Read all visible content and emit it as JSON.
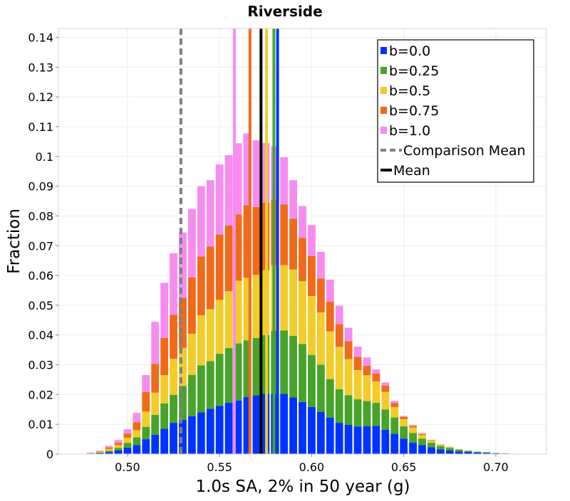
{
  "chart_data": {
    "type": "bar",
    "stacked": true,
    "title": "Riverside",
    "xlabel": "1.0s SA, 2% in 50 year (g)",
    "ylabel": "Fraction",
    "xlim": [
      0.4625,
      0.7275
    ],
    "ylim": [
      0,
      0.143
    ],
    "x_ticks": [
      0.5,
      0.55,
      0.6,
      0.65,
      0.7
    ],
    "x_tick_labels": [
      "0.50",
      "0.55",
      "0.60",
      "0.65",
      "0.70"
    ],
    "y_ticks": [
      0,
      0.01,
      0.02,
      0.03,
      0.04,
      0.05,
      0.06,
      0.07,
      0.08,
      0.09,
      0.1,
      0.11,
      0.12,
      0.13,
      0.14
    ],
    "y_tick_labels": [
      "0",
      "0.01",
      "0.02",
      "0.03",
      "0.04",
      "0.05",
      "0.06",
      "0.07",
      "0.08",
      "0.09",
      "0.1",
      "0.11",
      "0.12",
      "0.13",
      "0.14"
    ],
    "grid": true,
    "bin_width": 0.005,
    "bin_centers": [
      0.475,
      0.48,
      0.485,
      0.49,
      0.495,
      0.5,
      0.505,
      0.51,
      0.515,
      0.52,
      0.525,
      0.53,
      0.535,
      0.54,
      0.545,
      0.55,
      0.555,
      0.56,
      0.565,
      0.57,
      0.575,
      0.58,
      0.585,
      0.59,
      0.595,
      0.6,
      0.605,
      0.61,
      0.615,
      0.62,
      0.625,
      0.63,
      0.635,
      0.64,
      0.645,
      0.65,
      0.655,
      0.66,
      0.665,
      0.67,
      0.675,
      0.68,
      0.685,
      0.69,
      0.695,
      0.7,
      0.705,
      0.71,
      0.715
    ],
    "series": [
      {
        "name": "b=0.0",
        "color": "#0033ff",
        "values": [
          0,
          0.0001,
          0.0003,
          0.0006,
          0.0012,
          0.0022,
          0.003,
          0.005,
          0.0065,
          0.0085,
          0.0105,
          0.0115,
          0.0127,
          0.014,
          0.0152,
          0.0162,
          0.0172,
          0.018,
          0.0192,
          0.0197,
          0.0203,
          0.0202,
          0.0202,
          0.019,
          0.0175,
          0.0158,
          0.0142,
          0.0122,
          0.0105,
          0.0098,
          0.0092,
          0.0094,
          0.0095,
          0.0082,
          0.0068,
          0.0052,
          0.0038,
          0.003,
          0.0023,
          0.0016,
          0.0012,
          0.0009,
          0.0007,
          0.0005,
          0.0004,
          0.0003,
          0.0002,
          0.0001,
          0.0001
        ]
      },
      {
        "name": "b=0.25",
        "color": "#47a32a",
        "values": [
          0,
          0.0001,
          0.0002,
          0.0005,
          0.0009,
          0.0015,
          0.0026,
          0.0041,
          0.0067,
          0.0085,
          0.0094,
          0.0114,
          0.0139,
          0.0158,
          0.016,
          0.0175,
          0.0184,
          0.0192,
          0.019,
          0.0193,
          0.0197,
          0.0212,
          0.0213,
          0.0207,
          0.0195,
          0.0175,
          0.0158,
          0.013,
          0.0113,
          0.01,
          0.0092,
          0.0084,
          0.0077,
          0.0068,
          0.0055,
          0.0041,
          0.0033,
          0.0022,
          0.0015,
          0.0011,
          0.0009,
          0.0006,
          0.0004,
          0.0003,
          0.0002,
          0.0001,
          0.0001,
          0.0001,
          0
        ]
      },
      {
        "name": "b=0.5",
        "color": "#f2cc2a",
        "values": [
          0,
          0.0001,
          0.0002,
          0.0006,
          0.0009,
          0.0018,
          0.0024,
          0.0052,
          0.0074,
          0.0095,
          0.0121,
          0.0128,
          0.0138,
          0.0168,
          0.0175,
          0.0181,
          0.0191,
          0.021,
          0.021,
          0.0212,
          0.0218,
          0.022,
          0.022,
          0.0223,
          0.0211,
          0.0198,
          0.0176,
          0.016,
          0.0142,
          0.0121,
          0.0098,
          0.0087,
          0.0072,
          0.0059,
          0.0035,
          0.0024,
          0.0018,
          0.0012,
          0.0007,
          0.0005,
          0.0003,
          0.0002,
          0.0001,
          0.0001,
          0.0001,
          0,
          0,
          0,
          0
        ]
      },
      {
        "name": "b=0.75",
        "color": "#f06a1a",
        "values": [
          0,
          0.0001,
          0.0002,
          0.0005,
          0.0008,
          0.0014,
          0.0027,
          0.0065,
          0.0097,
          0.0125,
          0.0148,
          0.0168,
          0.0189,
          0.0198,
          0.021,
          0.022,
          0.0221,
          0.0223,
          0.0244,
          0.0228,
          0.0226,
          0.0221,
          0.0204,
          0.0171,
          0.0145,
          0.0134,
          0.0114,
          0.01,
          0.0077,
          0.006,
          0.0045,
          0.0032,
          0.0027,
          0.0021,
          0.0013,
          0.0008,
          0.0006,
          0.0004,
          0.0002,
          0.0001,
          0.0001,
          0,
          0,
          0,
          0,
          0,
          0,
          0,
          0
        ]
      },
      {
        "name": "b=1.0",
        "color": "#f78cf0",
        "values": [
          0.0001,
          0.0002,
          0.0003,
          0.0006,
          0.001,
          0.0015,
          0.0032,
          0.0058,
          0.0142,
          0.0186,
          0.0208,
          0.022,
          0.0231,
          0.0237,
          0.0224,
          0.0236,
          0.0237,
          0.024,
          0.0242,
          0.0225,
          0.0202,
          0.018,
          0.0159,
          0.013,
          0.0108,
          0.0105,
          0.009,
          0.0075,
          0.0062,
          0.0046,
          0.0035,
          0.0028,
          0.0014,
          0.0011,
          0.0008,
          0.0004,
          0.0003,
          0.0002,
          0.0001,
          0.0001,
          0,
          0,
          0,
          0,
          0,
          0,
          0,
          0,
          0
        ]
      }
    ],
    "mean_lines": [
      {
        "series": "b=0.0",
        "x": 0.5815,
        "color": "#0033ff"
      },
      {
        "series": "b=0.25",
        "x": 0.5795,
        "color": "#47a32a"
      },
      {
        "series": "b=0.5",
        "x": 0.5755,
        "color": "#f2cc2a"
      },
      {
        "series": "b=0.75",
        "x": 0.5665,
        "color": "#f06a1a"
      },
      {
        "series": "b=1.0",
        "x": 0.558,
        "color": "#f78cf0"
      }
    ],
    "overall_mean": {
      "x": 0.5725,
      "color": "#000000"
    },
    "comparison_mean": {
      "x": 0.529,
      "color": "#808080"
    },
    "legend": {
      "position": "top-right",
      "items": [
        {
          "label": "b=0.0",
          "type": "square",
          "color": "#0033ff"
        },
        {
          "label": "b=0.25",
          "type": "square",
          "color": "#47a32a"
        },
        {
          "label": "b=0.5",
          "type": "square",
          "color": "#f2cc2a"
        },
        {
          "label": "b=0.75",
          "type": "square",
          "color": "#f06a1a"
        },
        {
          "label": "b=1.0",
          "type": "square",
          "color": "#f78cf0"
        },
        {
          "label": "Comparison Mean",
          "type": "dashed-line",
          "color": "#808080"
        },
        {
          "label": "Mean",
          "type": "solid-line",
          "color": "#000000"
        }
      ]
    }
  }
}
